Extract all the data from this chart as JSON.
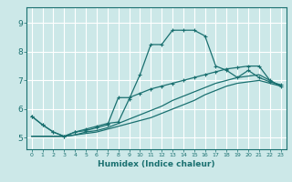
{
  "xlabel": "Humidex (Indice chaleur)",
  "bg_color": "#cce8e8",
  "grid_color": "#ffffff",
  "line_color": "#1a7070",
  "xlim": [
    -0.5,
    23.5
  ],
  "ylim": [
    4.6,
    9.55
  ],
  "xticks": [
    0,
    1,
    2,
    3,
    4,
    5,
    6,
    7,
    8,
    9,
    10,
    11,
    12,
    13,
    14,
    15,
    16,
    17,
    18,
    19,
    20,
    21,
    22,
    23
  ],
  "yticks": [
    5,
    6,
    7,
    8,
    9
  ],
  "line1_x": [
    0,
    1,
    2,
    3,
    4,
    5,
    6,
    7,
    8,
    9,
    10,
    11,
    12,
    13,
    14,
    15,
    16,
    17,
    18,
    19,
    20,
    21,
    22,
    23
  ],
  "line1_y": [
    5.75,
    5.45,
    5.2,
    5.05,
    5.2,
    5.3,
    5.4,
    5.5,
    5.55,
    6.35,
    7.2,
    8.25,
    8.25,
    8.75,
    8.75,
    8.75,
    8.55,
    7.5,
    7.35,
    7.1,
    7.35,
    7.1,
    6.95,
    6.85
  ],
  "line2_x": [
    0,
    1,
    2,
    3,
    4,
    5,
    6,
    7,
    8,
    9,
    10,
    11,
    12,
    13,
    14,
    15,
    16,
    17,
    18,
    19,
    20,
    21,
    22,
    23
  ],
  "line2_y": [
    5.05,
    5.05,
    5.05,
    5.05,
    5.1,
    5.15,
    5.2,
    5.3,
    5.4,
    5.5,
    5.6,
    5.7,
    5.85,
    6.0,
    6.15,
    6.3,
    6.5,
    6.65,
    6.8,
    6.9,
    6.95,
    7.0,
    6.9,
    6.8
  ],
  "line3_x": [
    0,
    1,
    2,
    3,
    4,
    5,
    6,
    7,
    8,
    9,
    10,
    11,
    12,
    13,
    14,
    15,
    16,
    17,
    18,
    19,
    20,
    21,
    22,
    23
  ],
  "line3_y": [
    5.05,
    5.05,
    5.05,
    5.05,
    5.1,
    5.2,
    5.25,
    5.35,
    5.5,
    5.65,
    5.8,
    5.95,
    6.1,
    6.3,
    6.45,
    6.6,
    6.75,
    6.9,
    7.0,
    7.1,
    7.15,
    7.2,
    7.0,
    6.8
  ],
  "line4_x": [
    0,
    1,
    2,
    3,
    4,
    5,
    6,
    7,
    8,
    9,
    10,
    11,
    12,
    13,
    14,
    15,
    16,
    17,
    18,
    19,
    20,
    21,
    22,
    23
  ],
  "line4_y": [
    5.75,
    5.45,
    5.2,
    5.05,
    5.2,
    5.25,
    5.35,
    5.45,
    6.4,
    6.4,
    6.55,
    6.7,
    6.8,
    6.9,
    7.0,
    7.1,
    7.2,
    7.3,
    7.4,
    7.45,
    7.5,
    7.5,
    7.0,
    6.8
  ]
}
